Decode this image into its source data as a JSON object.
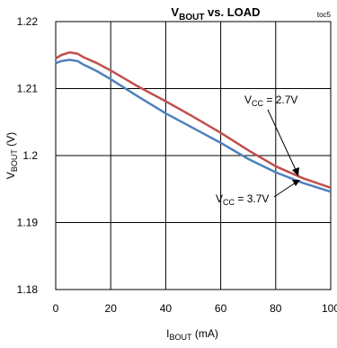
{
  "chart_data": {
    "type": "line",
    "title": {
      "main": "V",
      "sub": "BOUT",
      "rest": " vs. LOAD"
    },
    "tag": "toc5",
    "xlabel": {
      "main": "I",
      "sub": "BOUT",
      "rest": " (mA)"
    },
    "ylabel": {
      "main": "V",
      "sub": "BOUT",
      "rest": " (V)"
    },
    "xlim": [
      0,
      100
    ],
    "ylim": [
      1.18,
      1.22
    ],
    "x_ticks": [
      "0",
      "20",
      "40",
      "60",
      "80",
      "100"
    ],
    "y_ticks": [
      "1.18",
      "1.19",
      "1.2",
      "1.21",
      "1.22"
    ],
    "grid": true,
    "series": [
      {
        "name": "VCC = 2.7V",
        "label": {
          "main": "V",
          "sub": "CC",
          "rest": " = 2.7V"
        },
        "color": "#c0504d",
        "x": [
          0,
          2,
          5,
          8,
          10,
          15,
          20,
          30,
          40,
          50,
          60,
          70,
          80,
          90,
          100
        ],
        "y": [
          1.2145,
          1.215,
          1.2154,
          1.2152,
          1.2147,
          1.2138,
          1.2127,
          1.2103,
          1.2081,
          1.2058,
          1.2034,
          1.2008,
          1.1984,
          1.1966,
          1.1952
        ]
      },
      {
        "name": "VCC = 3.7V",
        "label": {
          "main": "V",
          "sub": "CC",
          "rest": " = 3.7V"
        },
        "color": "#4f81bd",
        "x": [
          0,
          2,
          5,
          8,
          10,
          15,
          20,
          30,
          40,
          50,
          60,
          70,
          80,
          90,
          100
        ],
        "y": [
          1.2138,
          1.2141,
          1.2143,
          1.2141,
          1.2136,
          1.2126,
          1.2114,
          1.2088,
          1.2063,
          1.2041,
          1.2019,
          1.1995,
          1.1975,
          1.1959,
          1.1946
        ]
      }
    ]
  }
}
